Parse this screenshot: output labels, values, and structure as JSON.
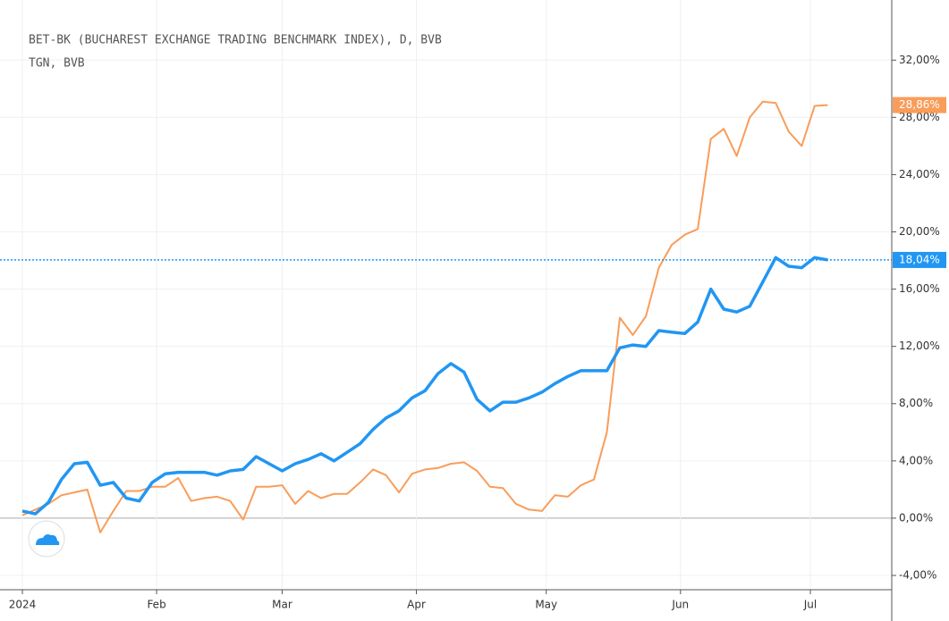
{
  "chart_data": {
    "type": "line",
    "legend_lines": [
      "BET-BK (BUCHAREST EXCHANGE TRADING BENCHMARK INDEX), D, BVB",
      "TGN, BVB"
    ],
    "x": [
      0,
      3,
      6,
      9,
      12,
      15,
      18,
      21,
      24,
      27,
      30,
      33,
      36,
      39,
      42,
      45,
      48,
      51,
      54,
      57,
      60,
      63,
      66,
      69,
      72,
      75,
      78,
      81,
      84,
      87,
      90,
      93,
      96,
      99,
      102,
      105,
      108,
      111,
      114,
      117,
      120,
      123,
      126,
      129,
      132,
      135,
      138,
      141,
      144,
      147,
      150,
      153,
      156,
      159,
      162,
      165,
      168,
      171,
      174,
      177,
      180,
      183,
      186
    ],
    "series": [
      {
        "name": "BET-BK",
        "color": "#2196f3",
        "last_label": "18,04%",
        "values": [
          0.5,
          0.3,
          1.1,
          2.7,
          3.8,
          3.9,
          2.3,
          2.5,
          1.4,
          1.2,
          2.5,
          3.1,
          3.2,
          3.2,
          3.2,
          3.0,
          3.3,
          3.4,
          4.3,
          3.8,
          3.3,
          3.8,
          4.1,
          4.5,
          4.0,
          4.6,
          5.2,
          6.2,
          7.0,
          7.5,
          8.4,
          8.9,
          10.1,
          10.8,
          10.2,
          8.3,
          7.5,
          8.1,
          8.1,
          8.4,
          8.8,
          9.4,
          9.9,
          10.3,
          10.3,
          10.3,
          11.9,
          12.1,
          12.0,
          13.1,
          13.0,
          12.9,
          13.7,
          16.0,
          14.6,
          14.4,
          14.8,
          16.5,
          18.2,
          17.6,
          17.5,
          18.2,
          18.04
        ]
      },
      {
        "name": "TGN",
        "color": "#f99d5a",
        "last_label": "28,86%",
        "values": [
          0.2,
          0.6,
          1.0,
          1.6,
          1.8,
          2.0,
          -1.0,
          0.5,
          1.9,
          1.9,
          2.2,
          2.2,
          2.8,
          1.2,
          1.4,
          1.5,
          1.2,
          -0.1,
          2.2,
          2.2,
          2.3,
          1.0,
          1.9,
          1.4,
          1.7,
          1.7,
          2.5,
          3.4,
          3.0,
          1.8,
          3.1,
          3.4,
          3.5,
          3.8,
          3.9,
          3.3,
          2.2,
          2.1,
          1.0,
          0.6,
          0.5,
          1.6,
          1.5,
          2.3,
          2.7,
          6.0,
          14.0,
          12.8,
          14.1,
          17.5,
          19.1,
          19.8,
          20.2,
          26.5,
          27.2,
          25.3,
          28.0,
          29.1,
          29.0,
          27.0,
          26.0,
          28.8,
          28.86
        ]
      }
    ],
    "xlim": [
      -1.45,
      200.8
    ],
    "xticks": [
      {
        "value": 0,
        "label": "2024"
      },
      {
        "value": 31,
        "label": "Feb"
      },
      {
        "value": 60,
        "label": "Mar"
      },
      {
        "value": 91,
        "label": "Apr"
      },
      {
        "value": 121,
        "label": "May"
      },
      {
        "value": 152,
        "label": "Jun"
      },
      {
        "value": 182,
        "label": "Jul"
      }
    ],
    "ylim": [
      -5,
      36.2
    ],
    "yticks": [
      {
        "value": -4,
        "label": "-4,00%"
      },
      {
        "value": 0,
        "label": "0,00%"
      },
      {
        "value": 4,
        "label": "4,00%"
      },
      {
        "value": 8,
        "label": "8,00%"
      },
      {
        "value": 12,
        "label": "12,00%"
      },
      {
        "value": 16,
        "label": "16,00%"
      },
      {
        "value": 20,
        "label": "20,00%"
      },
      {
        "value": 24,
        "label": "24,00%"
      },
      {
        "value": 28,
        "label": "28,00%"
      },
      {
        "value": 32,
        "label": "32,00%"
      }
    ],
    "grid": true
  }
}
